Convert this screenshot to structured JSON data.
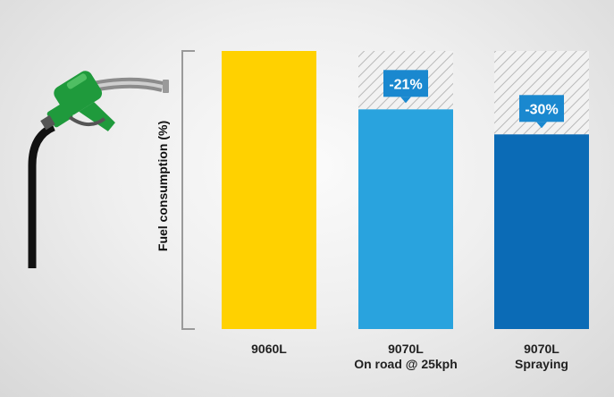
{
  "chart_data": {
    "type": "bar",
    "ylabel": "Fuel consumption (%)",
    "ylim": [
      0,
      100
    ],
    "categories": [
      {
        "line1": "9060L",
        "line2": ""
      },
      {
        "line1": "9070L",
        "line2": "On road @ 25kph"
      },
      {
        "line1": "9070L",
        "line2": "Spraying"
      }
    ],
    "values": [
      100,
      79,
      70
    ],
    "reference": 100,
    "reductions": [
      "",
      "-21%",
      "-30%"
    ],
    "colors": [
      "#ffd100",
      "#29a3de",
      "#0b6bb6"
    ],
    "badge_color": "#1a88cf",
    "grid": false
  },
  "decor": {
    "icon": "fuel-pump-nozzle-icon",
    "nozzle_color": "#1f9a3c"
  }
}
